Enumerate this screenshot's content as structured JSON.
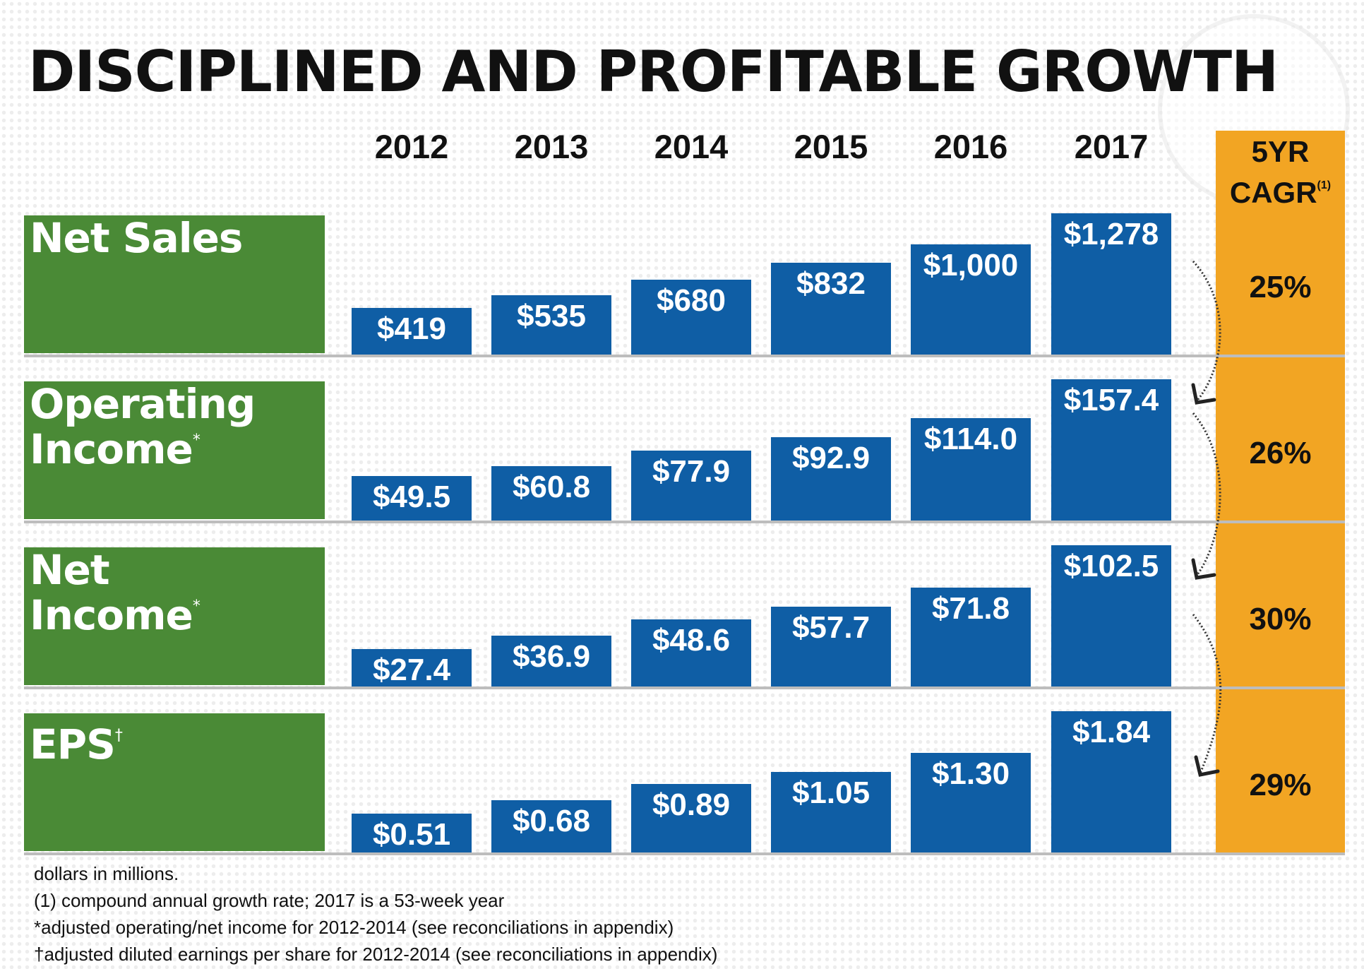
{
  "title": "Disciplined and Profitable Growth",
  "chart_data": {
    "type": "bar",
    "title": "Disciplined and Profitable Growth",
    "categories": [
      "2012",
      "2013",
      "2014",
      "2015",
      "2016",
      "2017"
    ],
    "cagr_header": {
      "line1": "5YR",
      "line2": "CAGR",
      "note": "(1)"
    },
    "series": [
      {
        "name": "Net Sales",
        "label_lines": [
          "Net Sales"
        ],
        "mark": "",
        "values": [
          419,
          535,
          680,
          832,
          1000,
          1278
        ],
        "labels": [
          "$419",
          "$535",
          "$680",
          "$832",
          "$1,000",
          "$1,278"
        ],
        "cagr": "25%"
      },
      {
        "name": "Operating Income",
        "label_lines": [
          "Operating",
          "Income"
        ],
        "mark": "*",
        "values": [
          49.5,
          60.8,
          77.9,
          92.9,
          114.0,
          157.4
        ],
        "labels": [
          "$49.5",
          "$60.8",
          "$77.9",
          "$92.9",
          "$114.0",
          "$157.4"
        ],
        "cagr": "26%"
      },
      {
        "name": "Net Income",
        "label_lines": [
          "Net",
          "Income"
        ],
        "mark": "*",
        "values": [
          27.4,
          36.9,
          48.6,
          57.7,
          71.8,
          102.5
        ],
        "labels": [
          "$27.4",
          "$36.9",
          "$48.6",
          "$57.7",
          "$71.8",
          "$102.5"
        ],
        "cagr": "30%"
      },
      {
        "name": "EPS",
        "label_lines": [
          "EPS"
        ],
        "mark": "†",
        "values": [
          0.51,
          0.68,
          0.89,
          1.05,
          1.3,
          1.84
        ],
        "labels": [
          "$0.51",
          "$0.68",
          "$0.89",
          "$1.05",
          "$1.30",
          "$1.84"
        ],
        "cagr": "29%"
      }
    ],
    "footnotes": [
      "dollars in millions.",
      "(1) compound annual growth rate; 2017 is a 53-week year",
      "*adjusted operating/net income for 2012-2014 (see reconciliations in appendix)",
      "†adjusted diluted earnings per share for 2012-2014 (see reconciliations in appendix)"
    ]
  },
  "colors": {
    "bar": "#0f5ea5",
    "label_box": "#4a8a36",
    "cagr": "#f2a523"
  }
}
